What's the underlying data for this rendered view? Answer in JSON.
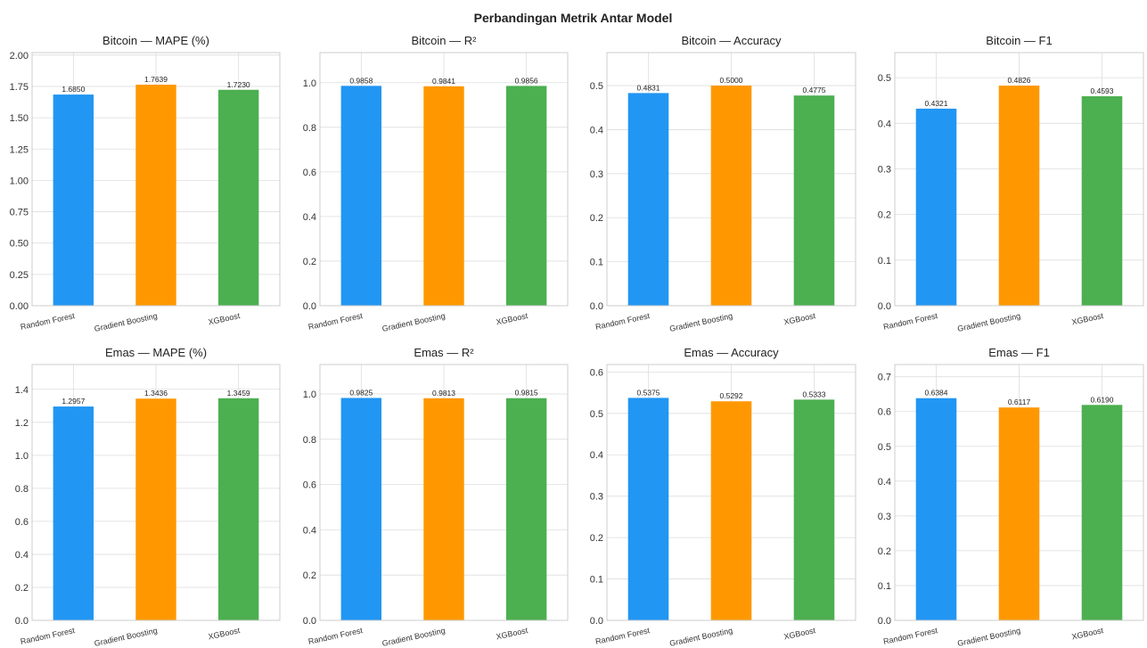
{
  "figure": {
    "suptitle": "Perbandingan Metrik Antar Model"
  },
  "chart_data": [
    {
      "type": "bar",
      "title": "Bitcoin — MAPE (%)",
      "categories": [
        "Random Forest",
        "Gradient Boosting",
        "XGBoost"
      ],
      "values": [
        1.685,
        1.7639,
        1.723
      ],
      "value_labels": [
        "1.6850",
        "1.7639",
        "1.7230"
      ],
      "ylim": [
        0,
        2.02
      ],
      "yticks": [
        0.0,
        0.25,
        0.5,
        0.75,
        1.0,
        1.25,
        1.5,
        1.75,
        2.0
      ],
      "ytick_labels": [
        "0.00",
        "0.25",
        "0.50",
        "0.75",
        "1.00",
        "1.25",
        "1.50",
        "1.75",
        "2.00"
      ],
      "colors": [
        "#2196F3",
        "#FF9800",
        "#4CAF50"
      ],
      "grid": true
    },
    {
      "type": "bar",
      "title": "Bitcoin — R²",
      "categories": [
        "Random Forest",
        "Gradient Boosting",
        "XGBoost"
      ],
      "values": [
        0.9858,
        0.9841,
        0.9856
      ],
      "value_labels": [
        "0.9858",
        "0.9841",
        "0.9856"
      ],
      "ylim": [
        0,
        1.135
      ],
      "yticks": [
        0.0,
        0.2,
        0.4,
        0.6,
        0.8,
        1.0
      ],
      "ytick_labels": [
        "0.0",
        "0.2",
        "0.4",
        "0.6",
        "0.8",
        "1.0"
      ],
      "colors": [
        "#2196F3",
        "#FF9800",
        "#4CAF50"
      ],
      "grid": true
    },
    {
      "type": "bar",
      "title": "Bitcoin — Accuracy",
      "categories": [
        "Random Forest",
        "Gradient Boosting",
        "XGBoost"
      ],
      "values": [
        0.4831,
        0.5,
        0.4775
      ],
      "value_labels": [
        "0.4831",
        "0.5000",
        "0.4775"
      ],
      "ylim": [
        0,
        0.575
      ],
      "yticks": [
        0.0,
        0.1,
        0.2,
        0.3,
        0.4,
        0.5
      ],
      "ytick_labels": [
        "0.0",
        "0.1",
        "0.2",
        "0.3",
        "0.4",
        "0.5"
      ],
      "colors": [
        "#2196F3",
        "#FF9800",
        "#4CAF50"
      ],
      "grid": true
    },
    {
      "type": "bar",
      "title": "Bitcoin — F1",
      "categories": [
        "Random Forest",
        "Gradient Boosting",
        "XGBoost"
      ],
      "values": [
        0.4321,
        0.4826,
        0.4593
      ],
      "value_labels": [
        "0.4321",
        "0.4826",
        "0.4593"
      ],
      "ylim": [
        0,
        0.555
      ],
      "yticks": [
        0.0,
        0.1,
        0.2,
        0.3,
        0.4,
        0.5
      ],
      "ytick_labels": [
        "0.0",
        "0.1",
        "0.2",
        "0.3",
        "0.4",
        "0.5"
      ],
      "colors": [
        "#2196F3",
        "#FF9800",
        "#4CAF50"
      ],
      "grid": true
    },
    {
      "type": "bar",
      "title": "Emas — MAPE (%)",
      "categories": [
        "Random Forest",
        "Gradient Boosting",
        "XGBoost"
      ],
      "values": [
        1.2957,
        1.3436,
        1.3459
      ],
      "value_labels": [
        "1.2957",
        "1.3436",
        "1.3459"
      ],
      "ylim": [
        0,
        1.55
      ],
      "yticks": [
        0.0,
        0.2,
        0.4,
        0.6,
        0.8,
        1.0,
        1.2,
        1.4
      ],
      "ytick_labels": [
        "0.0",
        "0.2",
        "0.4",
        "0.6",
        "0.8",
        "1.0",
        "1.2",
        "1.4"
      ],
      "colors": [
        "#2196F3",
        "#FF9800",
        "#4CAF50"
      ],
      "grid": true
    },
    {
      "type": "bar",
      "title": "Emas — R²",
      "categories": [
        "Random Forest",
        "Gradient Boosting",
        "XGBoost"
      ],
      "values": [
        0.9825,
        0.9813,
        0.9815
      ],
      "value_labels": [
        "0.9825",
        "0.9813",
        "0.9815"
      ],
      "ylim": [
        0,
        1.13
      ],
      "yticks": [
        0.0,
        0.2,
        0.4,
        0.6,
        0.8,
        1.0
      ],
      "ytick_labels": [
        "0.0",
        "0.2",
        "0.4",
        "0.6",
        "0.8",
        "1.0"
      ],
      "colors": [
        "#2196F3",
        "#FF9800",
        "#4CAF50"
      ],
      "grid": true
    },
    {
      "type": "bar",
      "title": "Emas — Accuracy",
      "categories": [
        "Random Forest",
        "Gradient Boosting",
        "XGBoost"
      ],
      "values": [
        0.5375,
        0.5292,
        0.5333
      ],
      "value_labels": [
        "0.5375",
        "0.5292",
        "0.5333"
      ],
      "ylim": [
        0,
        0.618
      ],
      "yticks": [
        0.0,
        0.1,
        0.2,
        0.3,
        0.4,
        0.5,
        0.6
      ],
      "ytick_labels": [
        "0.0",
        "0.1",
        "0.2",
        "0.3",
        "0.4",
        "0.5",
        "0.6"
      ],
      "colors": [
        "#2196F3",
        "#FF9800",
        "#4CAF50"
      ],
      "grid": true
    },
    {
      "type": "bar",
      "title": "Emas — F1",
      "categories": [
        "Random Forest",
        "Gradient Boosting",
        "XGBoost"
      ],
      "values": [
        0.6384,
        0.6117,
        0.619
      ],
      "value_labels": [
        "0.6384",
        "0.6117",
        "0.6190"
      ],
      "ylim": [
        0,
        0.735
      ],
      "yticks": [
        0.0,
        0.1,
        0.2,
        0.3,
        0.4,
        0.5,
        0.6,
        0.7
      ],
      "ytick_labels": [
        "0.0",
        "0.1",
        "0.2",
        "0.3",
        "0.4",
        "0.5",
        "0.6",
        "0.7"
      ],
      "colors": [
        "#2196F3",
        "#FF9800",
        "#4CAF50"
      ],
      "grid": true
    }
  ]
}
